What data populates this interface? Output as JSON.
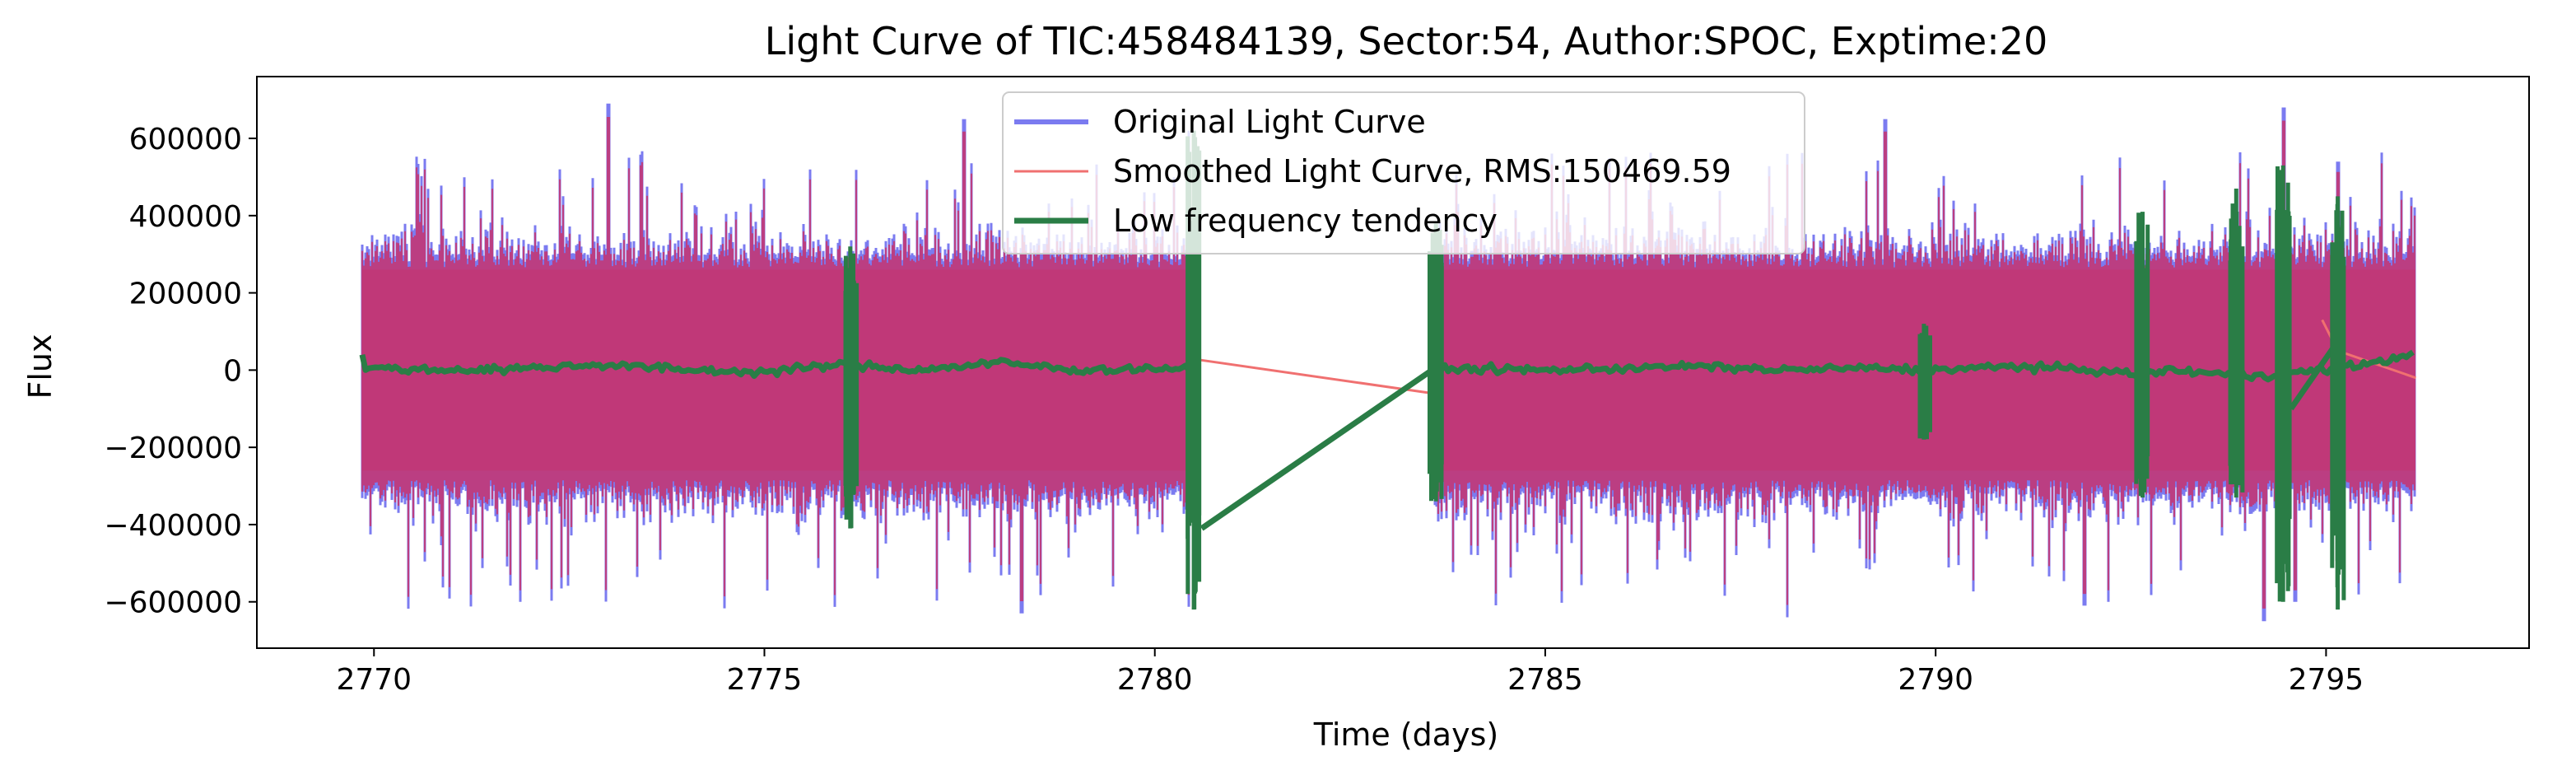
{
  "chart_data": {
    "type": "line",
    "title": "Light Curve of TIC:458484139, Sector:54, Author:SPOC, Exptime:20",
    "xlabel": "Time (days)",
    "ylabel": "Flux",
    "xlim": [
      2768.5,
      2797.6
    ],
    "ylim": [
      -720000,
      760000
    ],
    "xticks": [
      2770,
      2775,
      2780,
      2785,
      2790,
      2795
    ],
    "xtick_labels": [
      "2770",
      "2775",
      "2780",
      "2785",
      "2790",
      "2795"
    ],
    "yticks": [
      -600000,
      -400000,
      -200000,
      0,
      200000,
      400000,
      600000
    ],
    "ytick_labels": [
      "−600000",
      "−400000",
      "−200000",
      "0",
      "200000",
      "400000",
      "600000"
    ],
    "grid": false,
    "legend_position": "top-center",
    "segments": [
      [
        2769.85,
        2780.45
      ],
      [
        2783.55,
        2796.15
      ]
    ],
    "series": [
      {
        "name": "Original Light Curve",
        "color": "#7b7bf0",
        "style": "band",
        "typical_range": [
          -300000,
          280000
        ],
        "spikes_max": [
          [
            2773.0,
            690000
          ],
          [
            2777.55,
            650000
          ],
          [
            2780.45,
            620000
          ],
          [
            2794.45,
            680000
          ],
          [
            2789.35,
            650000
          ],
          [
            2795.15,
            540000
          ]
        ],
        "spikes_min": [
          [
            2778.3,
            -630000
          ],
          [
            2788.1,
            -640000
          ],
          [
            2794.2,
            -650000
          ],
          [
            2794.6,
            -600000
          ],
          [
            2791.9,
            -610000
          ]
        ]
      },
      {
        "name": "Smoothed Light Curve, RMS:150469.59",
        "color": "#f07070",
        "style": "band",
        "gap_bridges": [
          [
            [
              2780.45,
              30000
            ],
            [
              2783.55,
              -60000
            ]
          ],
          [
            [
              2794.95,
              130000
            ],
            [
              2795.15,
              50000
            ],
            [
              2796.15,
              -20000
            ]
          ]
        ]
      },
      {
        "name": "Low frequency tendency",
        "color": "#2a7d46",
        "baseline": [
          [
            2769.85,
            5000
          ],
          [
            2771.0,
            0
          ],
          [
            2772.0,
            5000
          ],
          [
            2773.0,
            15000
          ],
          [
            2774.0,
            0
          ],
          [
            2775.0,
            -5000
          ],
          [
            2776.0,
            15000
          ],
          [
            2777.0,
            0
          ],
          [
            2778.0,
            20000
          ],
          [
            2779.0,
            0
          ],
          [
            2780.2,
            5000
          ],
          [
            2780.45,
            0
          ],
          [
            2783.55,
            5000
          ],
          [
            2785.0,
            0
          ],
          [
            2786.0,
            5000
          ],
          [
            2787.0,
            10000
          ],
          [
            2788.0,
            0
          ],
          [
            2789.0,
            5000
          ],
          [
            2790.0,
            0
          ],
          [
            2791.0,
            10000
          ],
          [
            2792.0,
            0
          ],
          [
            2792.6,
            -10000
          ],
          [
            2793.0,
            0
          ],
          [
            2794.0,
            -15000
          ],
          [
            2794.45,
            -10000
          ],
          [
            2795.2,
            5000
          ],
          [
            2796.15,
            40000
          ]
        ],
        "gap_bridges": [
          [
            [
              2780.6,
              -410000
            ],
            [
              2783.55,
              0
            ]
          ],
          [
            [
              2794.55,
              -100000
            ],
            [
              2795.1,
              60000
            ]
          ]
        ],
        "vertical_excursions": [
          [
            2776.1,
            -410000,
            320000
          ],
          [
            2780.5,
            -620000,
            620000
          ],
          [
            2783.6,
            -340000,
            380000
          ],
          [
            2789.85,
            -180000,
            120000
          ],
          [
            2792.65,
            -330000,
            410000
          ],
          [
            2793.85,
            -330000,
            470000
          ],
          [
            2794.45,
            -600000,
            530000
          ],
          [
            2795.15,
            -620000,
            450000
          ]
        ]
      }
    ]
  }
}
